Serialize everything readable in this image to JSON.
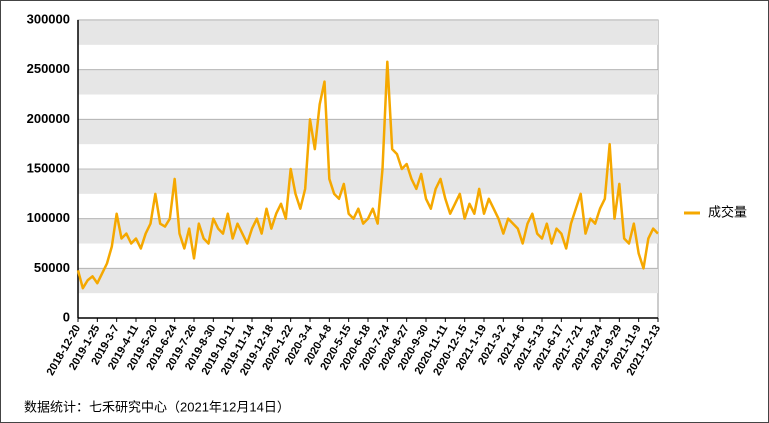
{
  "chart_data": {
    "type": "line",
    "categories": [
      "2018-12-20",
      null,
      null,
      null,
      "2019-1-25",
      null,
      null,
      null,
      "2019-3-7",
      null,
      null,
      null,
      "2019-4-11",
      null,
      null,
      null,
      "2019-5-20",
      null,
      null,
      null,
      "2019-6-24",
      null,
      null,
      null,
      "2019-7-26",
      null,
      null,
      null,
      "2019-8-30",
      null,
      null,
      null,
      "2019-10-11",
      null,
      null,
      null,
      "2019-11-14",
      null,
      null,
      null,
      "2019-12-18",
      null,
      null,
      null,
      "2020-1-22",
      null,
      null,
      null,
      "2020-3-4",
      null,
      null,
      null,
      "2020-4-8",
      null,
      null,
      null,
      "2020-5-15",
      null,
      null,
      null,
      "2020-6-18",
      null,
      null,
      null,
      "2020-7-24",
      null,
      null,
      null,
      "2020-8-27",
      null,
      null,
      null,
      "2020-9-30",
      null,
      null,
      null,
      "2020-11-11",
      null,
      null,
      null,
      "2020-12-15",
      null,
      null,
      null,
      "2021-1-19",
      null,
      null,
      null,
      "2021-3-2",
      null,
      null,
      null,
      "2021-4-6",
      null,
      null,
      null,
      "2021-5-13",
      null,
      null,
      null,
      "2021-6-17",
      null,
      null,
      null,
      "2021-7-21",
      null,
      null,
      null,
      "2021-8-24",
      null,
      null,
      null,
      "2021-9-29",
      null,
      null,
      null,
      "2021-11-9",
      null,
      null,
      null,
      "2021-12-13"
    ],
    "series": [
      {
        "name": "成交量",
        "color": "#f5a800",
        "values": [
          48000,
          30000,
          38000,
          42000,
          35000,
          45000,
          55000,
          72000,
          105000,
          80000,
          85000,
          75000,
          80000,
          70000,
          85000,
          95000,
          125000,
          95000,
          92000,
          100000,
          140000,
          85000,
          70000,
          90000,
          60000,
          95000,
          80000,
          75000,
          100000,
          90000,
          85000,
          105000,
          80000,
          95000,
          85000,
          75000,
          90000,
          100000,
          85000,
          110000,
          90000,
          105000,
          115000,
          100000,
          150000,
          125000,
          110000,
          130000,
          200000,
          170000,
          215000,
          238000,
          140000,
          125000,
          120000,
          135000,
          105000,
          100000,
          110000,
          95000,
          100000,
          110000,
          95000,
          150000,
          258000,
          170000,
          165000,
          150000,
          155000,
          140000,
          130000,
          145000,
          120000,
          110000,
          130000,
          140000,
          120000,
          105000,
          115000,
          125000,
          100000,
          115000,
          105000,
          130000,
          105000,
          120000,
          110000,
          100000,
          85000,
          100000,
          95000,
          90000,
          75000,
          95000,
          105000,
          85000,
          80000,
          95000,
          75000,
          90000,
          85000,
          70000,
          95000,
          110000,
          125000,
          85000,
          100000,
          95000,
          110000,
          120000,
          175000,
          100000,
          135000,
          80000,
          75000,
          95000,
          65000,
          50000,
          80000,
          90000,
          85000
        ]
      }
    ],
    "ylim": [
      0,
      300000
    ],
    "yticks": [
      0,
      50000,
      100000,
      150000,
      200000,
      250000,
      300000
    ],
    "grid": true,
    "legend": "right",
    "note": "数据统计：七禾研究中心（2021年12月14日）"
  }
}
